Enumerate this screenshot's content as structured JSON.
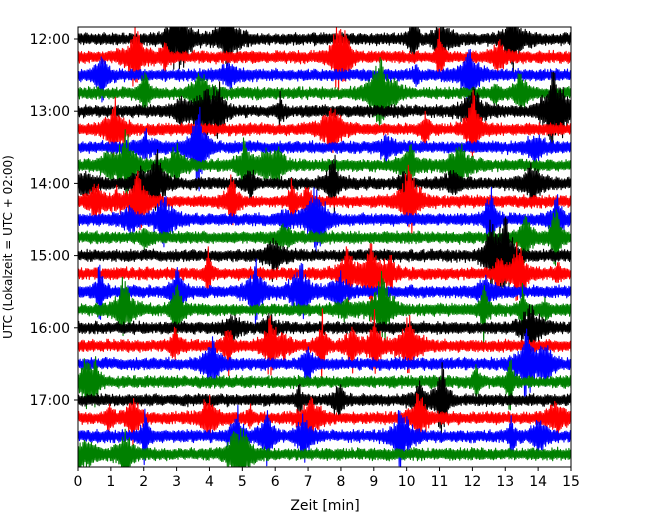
{
  "chart_data": {
    "type": "line",
    "chart_kind": "seismic helicorder (multi-row waveform trace)",
    "xlabel": "Zeit  [min]",
    "ylabel": "UTC (Lokalzeit = UTC + 02:00)",
    "xlim": [
      0,
      15
    ],
    "x_ticks": [
      0,
      1,
      2,
      3,
      4,
      5,
      6,
      7,
      8,
      9,
      10,
      11,
      12,
      13,
      14,
      15
    ],
    "x_tick_labels": [
      "0",
      "1",
      "2",
      "3",
      "4",
      "5",
      "6",
      "7",
      "8",
      "9",
      "10",
      "11",
      "12",
      "13",
      "14",
      "15"
    ],
    "y_tick_labels": [
      "12:00",
      "13:00",
      "14:00",
      "15:00",
      "16:00",
      "17:00"
    ],
    "row_start_time": "12:00",
    "row_interval_minutes": 15,
    "row_count": 24,
    "line_colors": [
      "#000000",
      "#ff0000",
      "#0000ff",
      "#008000"
    ],
    "grid": false,
    "legend": "none"
  }
}
